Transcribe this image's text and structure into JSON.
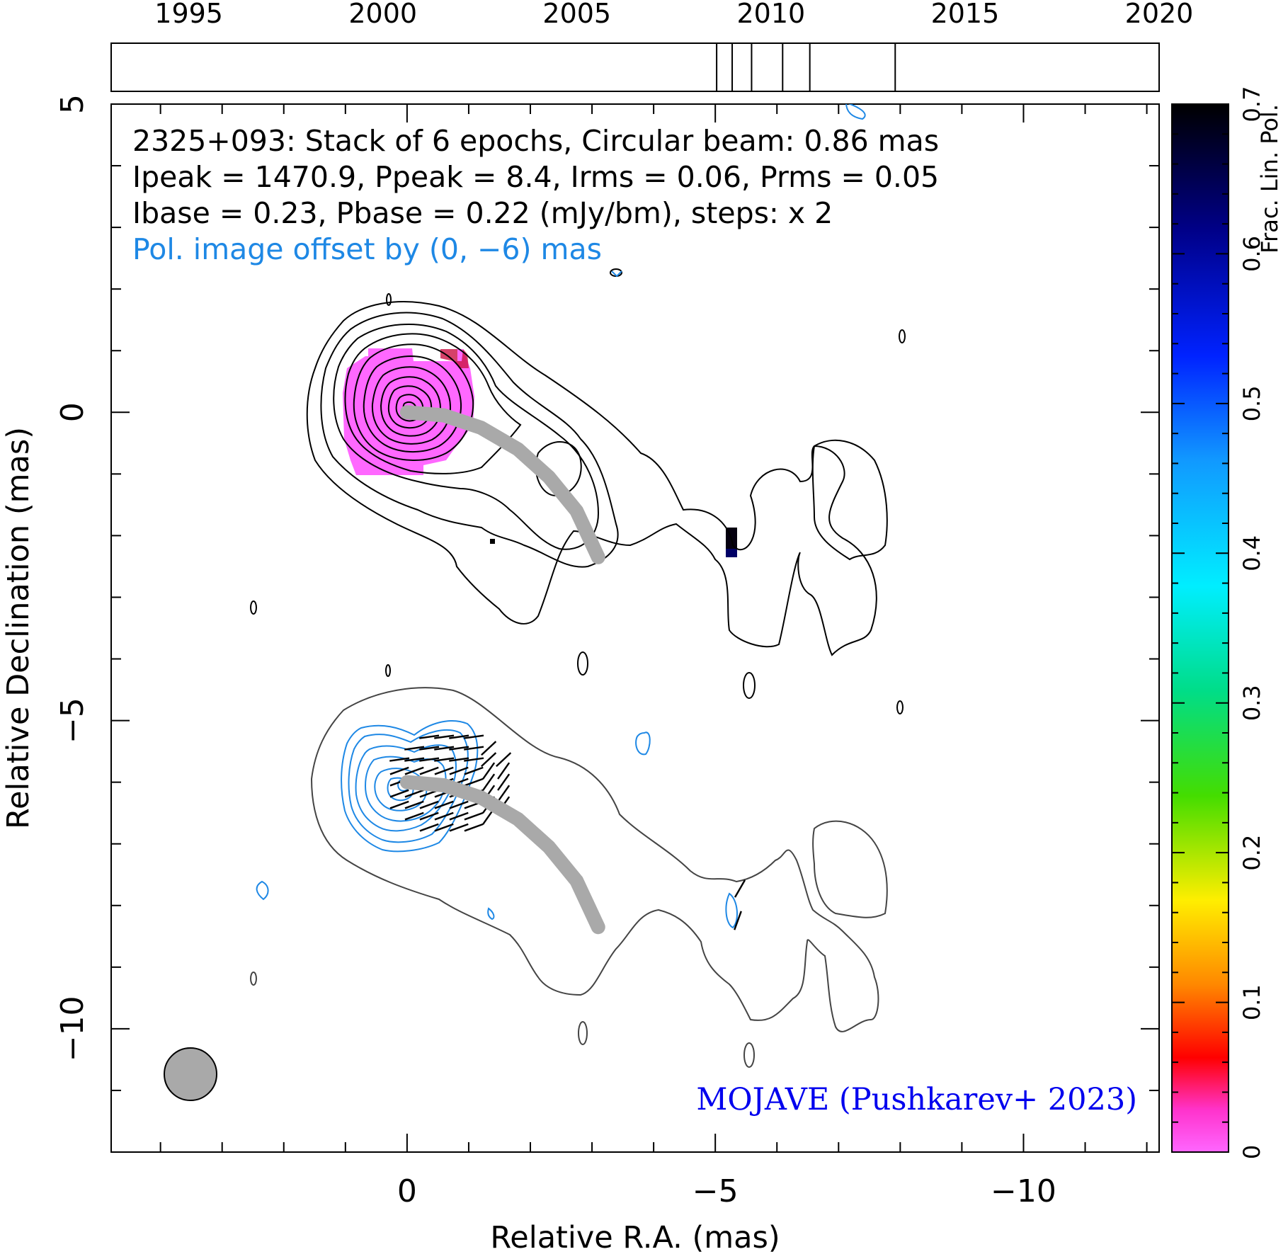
{
  "chart_data": {
    "type": "contour",
    "source_name": "2325+093",
    "annotations": {
      "line1": "2325+093: Stack of 6 epochs, Circular beam: 0.86 mas",
      "line2": "Ipeak = 1470.9, Ppeak = 8.4, Irms = 0.06, Prms = 0.05",
      "line3": "Ibase = 0.23, Pbase = 0.22 (mJy/bm), steps: x 2",
      "pol_offset": "Pol. image offset by (0, −6) mas",
      "credit": "MOJAVE (Pushkarev+ 2023)"
    },
    "axes": {
      "xlabel": "Relative R.A. (mas)",
      "ylabel": "Relative Declination (mas)",
      "xlim": [
        4.8,
        -12.2
      ],
      "ylim": [
        -12.0,
        5.0
      ],
      "x_ticks": [
        0,
        -5,
        -10
      ],
      "x_tick_labels": [
        "0",
        "−5",
        "−10"
      ],
      "y_ticks": [
        5,
        0,
        -5,
        -10
      ],
      "y_tick_labels": [
        "5",
        "0",
        "−5",
        "−10"
      ]
    },
    "epoch_timeline": {
      "range": [
        1993,
        2020
      ],
      "tick_labels": [
        "1995",
        "2000",
        "2005",
        "2010",
        "2015",
        "2020"
      ],
      "tick_years": [
        1995,
        2000,
        2005,
        2010,
        2015,
        2020
      ],
      "epochs": [
        2008.6,
        2009.0,
        2009.5,
        2010.3,
        2011.0,
        2013.2
      ]
    },
    "colorbar": {
      "label": "Frac. Lin. Pol.",
      "range": [
        0,
        0.7
      ],
      "tick_values": [
        0,
        0.1,
        0.2,
        0.3,
        0.4,
        0.5,
        0.6,
        0.7
      ],
      "tick_labels": [
        "0",
        "0.1",
        "0.2",
        "0.3",
        "0.4",
        "0.5",
        "0.6",
        "0.7"
      ]
    },
    "beam_mas": 0.86,
    "ridgeline_mas": [
      [
        0.0,
        0.0
      ],
      [
        -0.6,
        -0.05
      ],
      [
        -1.2,
        -0.25
      ],
      [
        -1.8,
        -0.6
      ],
      [
        -2.3,
        -1.05
      ],
      [
        -2.75,
        -1.6
      ],
      [
        -3.1,
        -2.35
      ]
    ],
    "pol_offset_mas": [
      0,
      -6
    ],
    "colors": {
      "total_intensity_contours": "#000000",
      "pol_contours": "#1e88e5",
      "fracpol_pixels": "#ff4dff",
      "ridgeline": "#a9a9a9",
      "annotation_blue": "#1e88e5",
      "credit_blue": "#0000ee",
      "beam_fill": "#a9a9a9"
    }
  }
}
